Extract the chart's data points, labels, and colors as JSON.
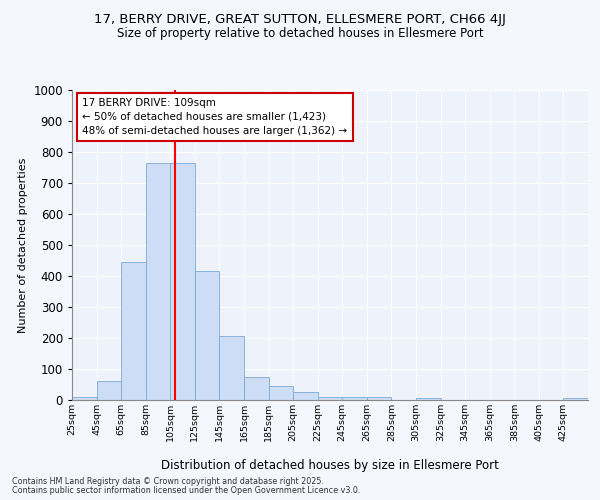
{
  "title": "17, BERRY DRIVE, GREAT SUTTON, ELLESMERE PORT, CH66 4JJ",
  "subtitle": "Size of property relative to detached houses in Ellesmere Port",
  "xlabel": "Distribution of detached houses by size in Ellesmere Port",
  "ylabel": "Number of detached properties",
  "bar_color": "#ccddf5",
  "bar_edge_color": "#7aaad4",
  "background_color": "#eef2fb",
  "grid_color": "#ffffff",
  "bins": [
    25,
    45,
    65,
    85,
    105,
    125,
    145,
    165,
    185,
    205,
    225,
    245,
    265,
    285,
    305,
    325,
    345,
    365,
    385,
    405,
    425,
    445
  ],
  "counts": [
    10,
    62,
    445,
    765,
    765,
    415,
    205,
    75,
    45,
    27,
    10,
    10,
    10,
    0,
    5,
    0,
    0,
    0,
    0,
    0,
    7
  ],
  "red_line_x": 109,
  "annotation_line1": "17 BERRY DRIVE: 109sqm",
  "annotation_line2": "← 50% of detached houses are smaller (1,423)",
  "annotation_line3": "48% of semi-detached houses are larger (1,362) →",
  "annotation_box_color": "#ffffff",
  "annotation_edge_color": "#cc0000",
  "ylim": [
    0,
    1000
  ],
  "yticks": [
    0,
    100,
    200,
    300,
    400,
    500,
    600,
    700,
    800,
    900,
    1000
  ],
  "footer1": "Contains HM Land Registry data © Crown copyright and database right 2025.",
  "footer2": "Contains public sector information licensed under the Open Government Licence v3.0."
}
